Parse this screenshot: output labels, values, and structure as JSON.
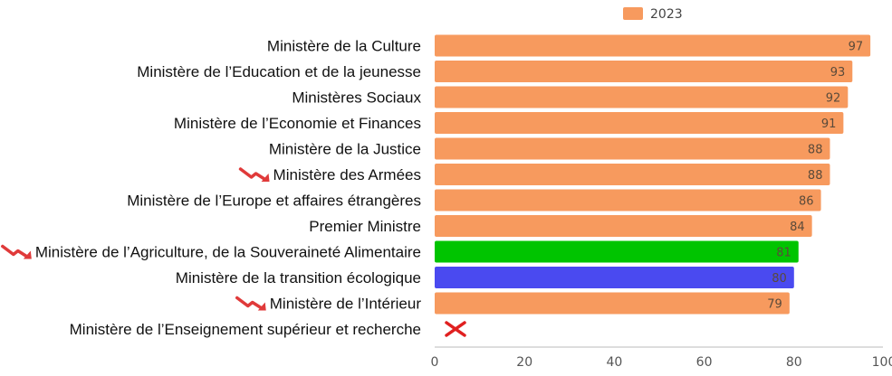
{
  "chart_data": {
    "type": "bar",
    "orientation": "horizontal",
    "categories": [
      "Ministère de la Culture",
      "Ministère de l’Education et de la jeunesse",
      "Ministères Sociaux",
      "Ministère de l’Economie et Finances",
      "Ministère de la Justice",
      "Ministère des Armées",
      "Ministère de l’Europe et affaires étrangères",
      "Premier Ministre",
      "Ministère de l’Agriculture, de la Souveraineté Alimentaire",
      "Ministère de la transition écologique",
      "Ministère de l’Intérieur",
      "Ministère de l’Enseignement supérieur et recherche"
    ],
    "series": [
      {
        "name": "2023",
        "values": [
          97,
          93,
          92,
          91,
          88,
          88,
          86,
          84,
          81,
          80,
          79,
          null
        ],
        "labels": [
          "97",
          "93",
          "92",
          "91",
          "88",
          "88",
          "86",
          "84",
          "81",
          "80",
          "79",
          ""
        ]
      }
    ],
    "bar_colors": [
      "#f79a5e",
      "#f79a5e",
      "#f79a5e",
      "#f79a5e",
      "#f79a5e",
      "#f79a5e",
      "#f79a5e",
      "#f79a5e",
      "#00c400",
      "#4a4af0",
      "#f79a5e",
      "#f79a5e"
    ],
    "value_label_colors": [
      "#5a4a3a",
      "#5a4a3a",
      "#5a4a3a",
      "#5a4a3a",
      "#5a4a3a",
      "#5a4a3a",
      "#5a4a3a",
      "#5a4a3a",
      "#5a4a3a",
      "#f0a060",
      "#5a4a3a",
      "#5a4a3a"
    ],
    "trend_down_markers": [
      5,
      8,
      10
    ],
    "missing_marker_index": 11,
    "xlim": [
      0,
      100
    ],
    "xticks": [
      "0",
      "20",
      "40",
      "60",
      "80",
      "100"
    ],
    "legend": {
      "position": "top",
      "color": "#f79a5e"
    },
    "grid": false,
    "colors": {
      "trend_arrow": "#e03a3a",
      "missing_cross": "#e02020"
    }
  }
}
